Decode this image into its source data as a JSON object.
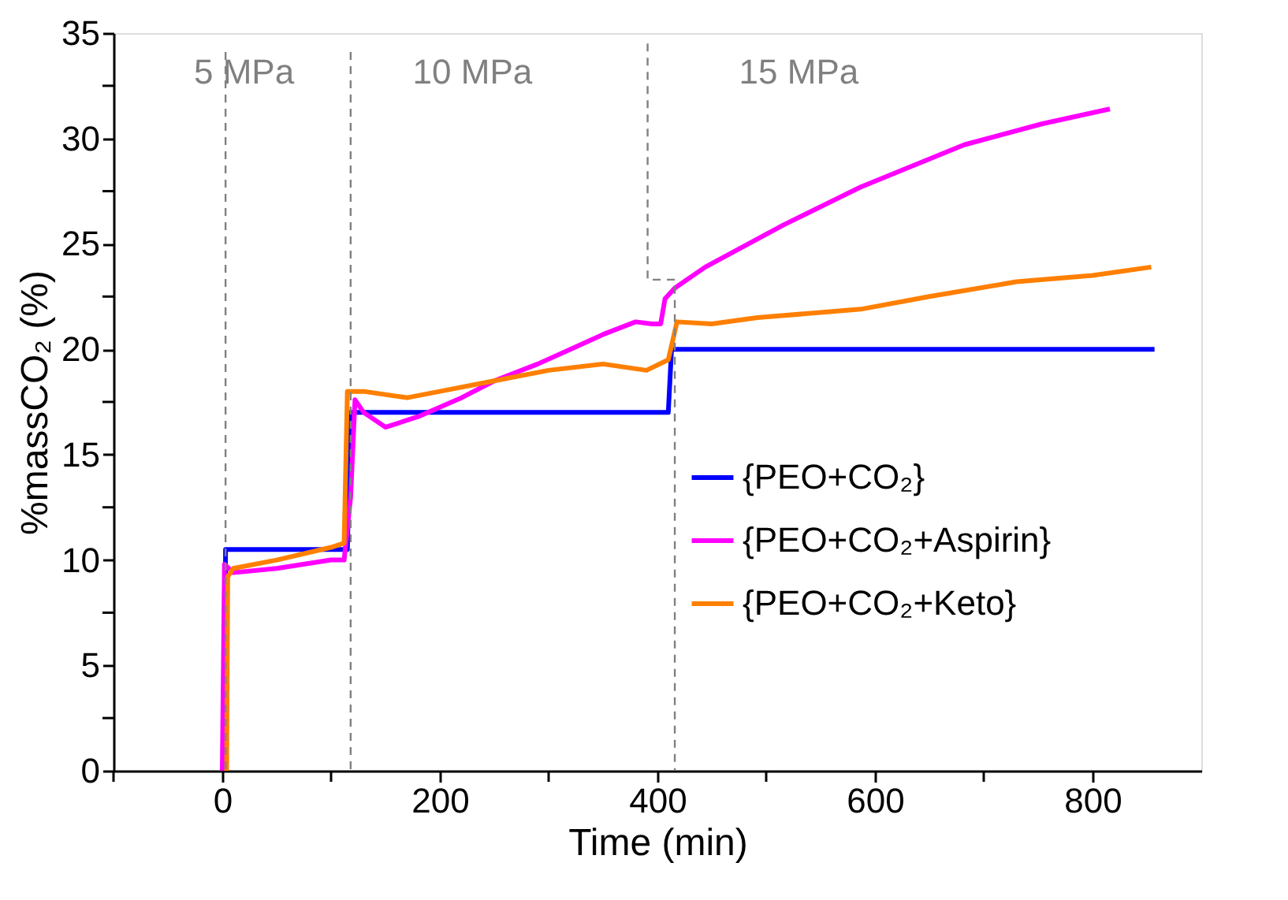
{
  "chart_data": {
    "type": "line",
    "xlabel": "Time (min)",
    "ylabel": "%massCO₂ (%)",
    "xlim": [
      -100,
      900
    ],
    "ylim": [
      0,
      35
    ],
    "xticks": [
      {
        "value": -100,
        "label": null
      },
      0,
      {
        "value": 100,
        "label": null
      },
      200,
      {
        "value": 300,
        "label": null
      },
      400,
      {
        "value": 500,
        "label": null
      },
      600,
      {
        "value": 700,
        "label": null
      },
      800
    ],
    "yticks": [
      0,
      {
        "value": 2.5,
        "label": null
      },
      5,
      {
        "value": 7.5,
        "label": null
      },
      10,
      {
        "value": 12.5,
        "label": null
      },
      15,
      {
        "value": 17.5,
        "label": null
      },
      20,
      {
        "value": 22.5,
        "label": null
      },
      25,
      {
        "value": 27.5,
        "label": null
      },
      30,
      {
        "value": 32.5,
        "label": null
      },
      35
    ],
    "grid": false,
    "legend": "bottom right",
    "line_style": "solid",
    "marker": "none",
    "series": [
      {
        "name": "{PEO+CO₂}",
        "color": "#0000ff",
        "x": [
          2,
          3,
          115,
          118,
          410,
          413,
          857
        ],
        "values": [
          0,
          10.5,
          10.5,
          17.0,
          17.0,
          20.0,
          20.0
        ]
      },
      {
        "name": "{PEO+CO₂+Aspirin}",
        "color": "#ff00ff",
        "x": [
          0,
          2,
          10,
          50,
          100,
          112,
          118,
          122,
          130,
          150,
          180,
          220,
          250,
          290,
          320,
          350,
          380,
          395,
          403,
          407,
          416,
          444,
          516,
          587,
          682,
          754,
          816
        ],
        "values": [
          0,
          9.8,
          9.4,
          9.6,
          10.0,
          10.0,
          13.0,
          17.6,
          17.0,
          16.3,
          16.8,
          17.7,
          18.5,
          19.3,
          20.0,
          20.7,
          21.3,
          21.2,
          21.2,
          22.4,
          22.9,
          23.9,
          25.9,
          27.7,
          29.7,
          30.7,
          31.4
        ]
      },
      {
        "name": "{PEO+CO₂+Keto}",
        "color": "#ff7f00",
        "x": [
          4,
          5,
          10,
          50,
          100,
          112,
          115,
          130,
          170,
          200,
          250,
          300,
          350,
          390,
          410,
          418,
          450,
          492,
          587,
          650,
          730,
          800,
          854
        ],
        "values": [
          0,
          9.2,
          9.6,
          10.0,
          10.6,
          10.8,
          18.0,
          18.0,
          17.7,
          18.0,
          18.5,
          19.0,
          19.3,
          19.0,
          19.5,
          21.3,
          21.2,
          21.5,
          21.9,
          22.5,
          23.2,
          23.5,
          23.9
        ]
      },
      {
        "type": "line",
        "line_style": "dashed",
        "color": "#808080",
        "x": [
          391,
          391,
          416,
          416
        ],
        "values": [
          34.5,
          23.3,
          23.3,
          0
        ]
      }
    ],
    "ref_lines": [
      {
        "axis": "x",
        "value": 3,
        "color": "#808080",
        "line_style": "dashed"
      },
      {
        "axis": "x",
        "value": 118,
        "color": "#808080",
        "line_style": "dashed"
      }
    ],
    "annotations": [
      "5 MPa",
      "10 MPa",
      "15 MPa"
    ]
  }
}
